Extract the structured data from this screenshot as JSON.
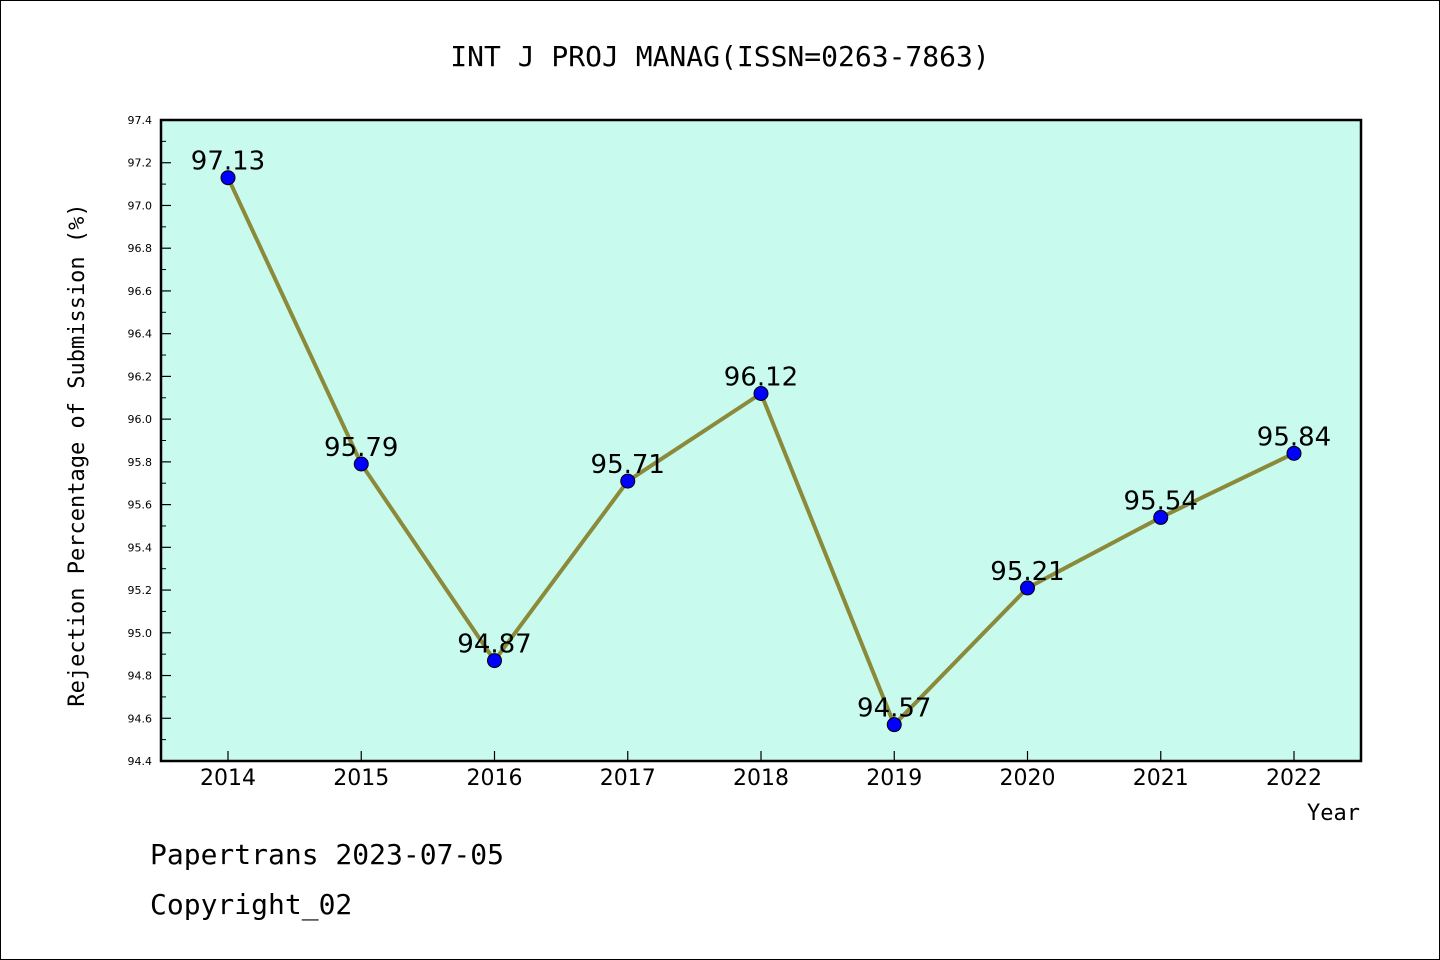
{
  "chart_data": {
    "type": "line",
    "title": "INT J PROJ MANAG(ISSN=0263-7863)",
    "xlabel": "Year",
    "ylabel": "Rejection Percentage of Submission (%)",
    "categories": [
      "2014",
      "2015",
      "2016",
      "2017",
      "2018",
      "2019",
      "2020",
      "2021",
      "2022"
    ],
    "values": [
      97.13,
      95.79,
      94.87,
      95.71,
      96.12,
      94.57,
      95.21,
      95.54,
      95.84
    ],
    "data_labels": [
      "97.13",
      "95.79",
      "94.87",
      "95.71",
      "96.12",
      "94.57",
      "95.21",
      "95.54",
      "95.84"
    ],
    "ylim": [
      94.4,
      97.4
    ],
    "yticks": [
      "94.4",
      "94.6",
      "94.8",
      "95.0",
      "95.2",
      "95.4",
      "95.6",
      "95.8",
      "96.0",
      "96.2",
      "96.4",
      "96.6",
      "96.8",
      "97.0",
      "97.2",
      "97.4"
    ],
    "grid": false,
    "colors": {
      "plot_background": "#c8fbee",
      "line": "#8b8a3a",
      "marker": "#0000ff"
    }
  },
  "footer": {
    "line1": "Papertrans 2023-07-05",
    "line2": "Copyright_02"
  }
}
